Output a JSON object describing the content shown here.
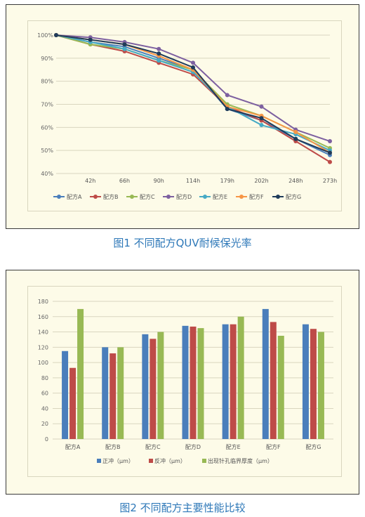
{
  "captions": {
    "fig1": "图1 不同配方QUV耐候保光率",
    "fig2": "图2 不同配方主要性能比较"
  },
  "chart_data": [
    {
      "type": "line",
      "x": [
        "",
        "42h",
        "66h",
        "90h",
        "114h",
        "179h",
        "202h",
        "248h",
        "273h"
      ],
      "y_ticks": [
        "40%",
        "50%",
        "60%",
        "70%",
        "80%",
        "90%",
        "100%"
      ],
      "ylim": [
        40,
        100
      ],
      "grid": true,
      "legend": "bottom",
      "series": [
        {
          "name": "配方A",
          "color": "#4a7ebb",
          "values": [
            100,
            97,
            95,
            90,
            85,
            68,
            63,
            55,
            48
          ]
        },
        {
          "name": "配方B",
          "color": "#be4b48",
          "values": [
            100,
            96,
            93,
            88,
            83,
            69,
            63,
            54,
            45
          ]
        },
        {
          "name": "配方C",
          "color": "#98b954",
          "values": [
            100,
            96,
            94,
            89,
            85,
            70,
            65,
            58,
            51
          ]
        },
        {
          "name": "配方D",
          "color": "#7d60a0",
          "values": [
            100,
            99,
            97,
            94,
            88,
            74,
            69,
            59,
            54
          ]
        },
        {
          "name": "配方E",
          "color": "#46aac5",
          "values": [
            100,
            97,
            94,
            89,
            84,
            69,
            61,
            57,
            50
          ]
        },
        {
          "name": "配方F",
          "color": "#f79646",
          "values": [
            100,
            98,
            96,
            91,
            85,
            69,
            65,
            58,
            49
          ]
        },
        {
          "name": "配方G",
          "color": "#1f3b5a",
          "values": [
            100,
            98,
            96,
            92,
            86,
            68,
            64,
            55,
            49
          ]
        }
      ]
    },
    {
      "type": "bar",
      "categories": [
        "配方A",
        "配方B",
        "配方C",
        "配方D",
        "配方E",
        "配方F",
        "配方G"
      ],
      "y_ticks": [
        "0",
        "20",
        "40",
        "60",
        "80",
        "100",
        "120",
        "140",
        "160",
        "180"
      ],
      "ylim": [
        0,
        180
      ],
      "grid": true,
      "legend": "bottom",
      "series": [
        {
          "name": "正冲（μm）",
          "color": "#4a7ebb",
          "values": [
            115,
            120,
            137,
            148,
            150,
            170,
            150
          ]
        },
        {
          "name": "反冲（μm）",
          "color": "#be4b48",
          "values": [
            93,
            112,
            131,
            147,
            150,
            153,
            144
          ]
        },
        {
          "name": "出现针孔临界厚度（μm）",
          "color": "#98b954",
          "values": [
            170,
            120,
            140,
            145,
            160,
            135,
            140
          ]
        }
      ]
    }
  ]
}
